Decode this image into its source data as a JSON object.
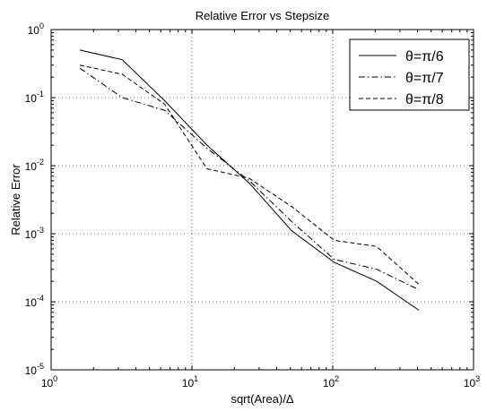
{
  "chart_data": {
    "type": "line",
    "title": "Relative Error vs Stepsize",
    "xlabel": "sqrt(Area)/Δ",
    "ylabel": "Relative Error",
    "xscale": "log",
    "yscale": "log",
    "xlim": [
      1,
      1000
    ],
    "ylim": [
      1e-05,
      1
    ],
    "grid": true,
    "legend_position": "top-right",
    "x_ticks": [
      {
        "value": 1,
        "base": "10",
        "exp": "0"
      },
      {
        "value": 10,
        "base": "10",
        "exp": "1"
      },
      {
        "value": 100,
        "base": "10",
        "exp": "2"
      },
      {
        "value": 1000,
        "base": "10",
        "exp": "3"
      }
    ],
    "y_ticks": [
      {
        "value": 1e-05,
        "base": "10",
        "exp": "-5"
      },
      {
        "value": 0.0001,
        "base": "10",
        "exp": "-4"
      },
      {
        "value": 0.001,
        "base": "10",
        "exp": "-3"
      },
      {
        "value": 0.01,
        "base": "10",
        "exp": "-2"
      },
      {
        "value": 0.1,
        "base": "10",
        "exp": "-1"
      },
      {
        "value": 1,
        "base": "10",
        "exp": "0"
      }
    ],
    "series": [
      {
        "name": "θ=π/6",
        "line_style": "solid",
        "x": [
          1.6,
          3.2,
          6.4,
          12.8,
          25.6,
          51.2,
          102.4,
          204.8,
          409.6
        ],
        "y": [
          0.5,
          0.36,
          0.09,
          0.02,
          0.0055,
          0.0011,
          0.00038,
          0.0002,
          7.5e-05
        ]
      },
      {
        "name": "θ=π/7",
        "line_style": "dashdot",
        "x": [
          1.6,
          3.2,
          6.4,
          12.8,
          25.6,
          51.2,
          102.4,
          204.8,
          409.6
        ],
        "y": [
          0.27,
          0.1,
          0.065,
          0.018,
          0.006,
          0.0015,
          0.00042,
          0.0003,
          0.00015
        ]
      },
      {
        "name": "θ=π/8",
        "line_style": "dashed",
        "x": [
          1.6,
          3.2,
          6.4,
          12.8,
          25.6,
          51.2,
          102.4,
          204.8,
          409.6
        ],
        "y": [
          0.3,
          0.22,
          0.08,
          0.009,
          0.0065,
          0.0025,
          0.0008,
          0.00065,
          0.00018
        ]
      }
    ]
  }
}
